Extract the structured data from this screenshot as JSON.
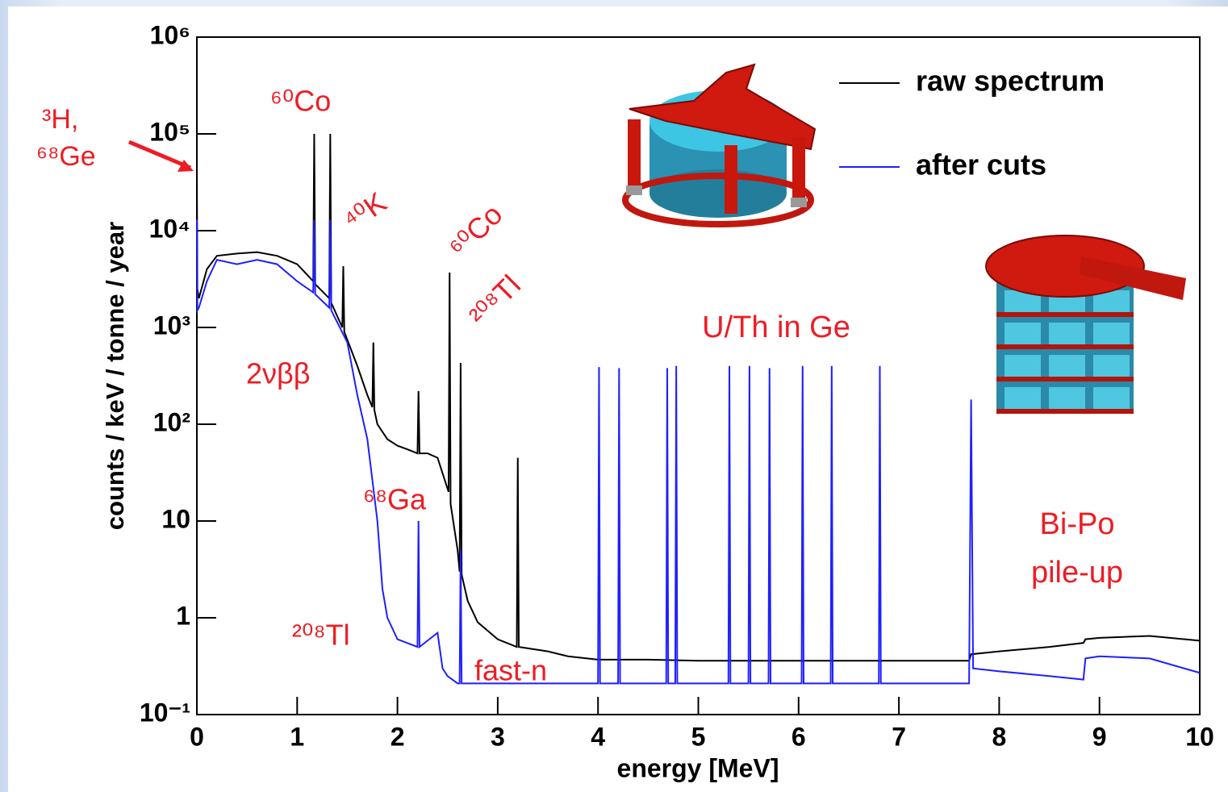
{
  "chart_data": {
    "type": "line",
    "xlabel": "energy [MeV]",
    "ylabel": "counts / keV / tonne / year",
    "xlim": [
      0,
      10
    ],
    "xticks": [
      0,
      1,
      2,
      3,
      4,
      5,
      6,
      7,
      8,
      9,
      10
    ],
    "ylim": [
      0.1,
      1000000
    ],
    "ylog": true,
    "yticks": [
      {
        "value": 1000000,
        "label": "10⁶"
      },
      {
        "value": 100000,
        "label": "10⁵"
      },
      {
        "value": 10000,
        "label": "10⁴"
      },
      {
        "value": 1000,
        "label": "10³"
      },
      {
        "value": 100,
        "label": "10²"
      },
      10,
      1,
      {
        "value": 0.1,
        "label": "10⁻¹"
      }
    ],
    "grid": false,
    "legend": "upper right",
    "annotation_color": "#ee1c24",
    "annotations": [
      "³H,",
      "⁶⁸Ge",
      "⁶⁰Co",
      "⁴⁰K",
      "⁶⁰Co",
      "²⁰⁸Tl",
      "2νββ",
      "⁶⁸Ga",
      "²⁰⁸Tl",
      "fast-n",
      "U/Th in Ge",
      "Bi-Po",
      "pile-up"
    ],
    "series": [
      {
        "name": "raw spectrum",
        "color": "#000000",
        "x": [
          0,
          0.005,
          0.02,
          0.1,
          0.2,
          0.4,
          0.6,
          0.8,
          1.0,
          1.1,
          1.16,
          1.17,
          1.18,
          1.32,
          1.33,
          1.34,
          1.45,
          1.46,
          1.47,
          1.6,
          1.7,
          1.75,
          1.76,
          1.77,
          1.8,
          1.9,
          2.0,
          2.1,
          2.2,
          2.21,
          2.22,
          2.3,
          2.4,
          2.51,
          2.52,
          2.53,
          2.6,
          2.62,
          2.63,
          2.64,
          2.7,
          2.8,
          3.0,
          3.19,
          3.2,
          3.21,
          3.5,
          3.7,
          4.0,
          4.5,
          5.0,
          6.0,
          7.0,
          7.7,
          7.72,
          8.0,
          8.5,
          8.84,
          8.86,
          9.0,
          9.5,
          10
        ],
        "values": [
          40000,
          2500,
          2000,
          4000,
          5500,
          5800,
          6000,
          5500,
          4500,
          3500,
          3000,
          100000,
          2800,
          2000,
          100000,
          1800,
          1000,
          4300,
          900,
          400,
          200,
          150,
          700,
          140,
          100,
          70,
          60,
          55,
          50,
          220,
          50,
          50,
          45,
          20,
          3700,
          15,
          5,
          3,
          430,
          2.8,
          1.5,
          0.9,
          0.6,
          0.5,
          45,
          0.5,
          0.45,
          0.4,
          0.37,
          0.37,
          0.36,
          0.36,
          0.36,
          0.36,
          0.42,
          0.45,
          0.5,
          0.55,
          0.6,
          0.62,
          0.65,
          0.58
        ]
      },
      {
        "name": "after cuts",
        "color": "#1f1fff",
        "x": [
          0,
          0.005,
          0.02,
          0.1,
          0.2,
          0.4,
          0.6,
          0.8,
          1.0,
          1.16,
          1.17,
          1.18,
          1.32,
          1.33,
          1.34,
          1.5,
          1.6,
          1.7,
          1.8,
          1.85,
          1.9,
          2.0,
          2.2,
          2.21,
          2.22,
          2.4,
          2.45,
          2.5,
          2.6,
          2.62,
          2.63,
          2.64,
          3.0,
          4.0,
          4.01,
          4.02,
          4.2,
          4.21,
          4.22,
          4.68,
          4.69,
          4.7,
          4.77,
          4.78,
          4.79,
          5.3,
          5.31,
          5.32,
          5.5,
          5.51,
          5.52,
          5.7,
          5.71,
          5.72,
          6.03,
          6.04,
          6.05,
          6.32,
          6.33,
          6.34,
          6.8,
          6.81,
          6.82,
          7.7,
          7.72,
          7.74,
          8.0,
          8.5,
          8.84,
          8.86,
          9.0,
          9.5,
          10
        ],
        "values": [
          13000,
          1500,
          1600,
          3000,
          5000,
          4500,
          5000,
          4500,
          3000,
          2300,
          13000,
          2200,
          1600,
          13000,
          1500,
          700,
          200,
          70,
          10,
          2,
          1,
          0.6,
          0.5,
          10,
          0.5,
          0.7,
          0.3,
          0.25,
          0.21,
          0.21,
          5,
          0.21,
          0.21,
          0.21,
          390,
          0.21,
          0.21,
          380,
          0.21,
          0.21,
          380,
          0.21,
          0.21,
          400,
          0.21,
          0.21,
          400,
          0.21,
          0.21,
          400,
          0.21,
          0.21,
          380,
          0.21,
          0.21,
          400,
          0.21,
          0.21,
          400,
          0.21,
          0.21,
          400,
          0.21,
          0.21,
          180,
          0.3,
          0.28,
          0.25,
          0.23,
          0.38,
          0.4,
          0.38,
          0.27
        ]
      }
    ]
  }
}
